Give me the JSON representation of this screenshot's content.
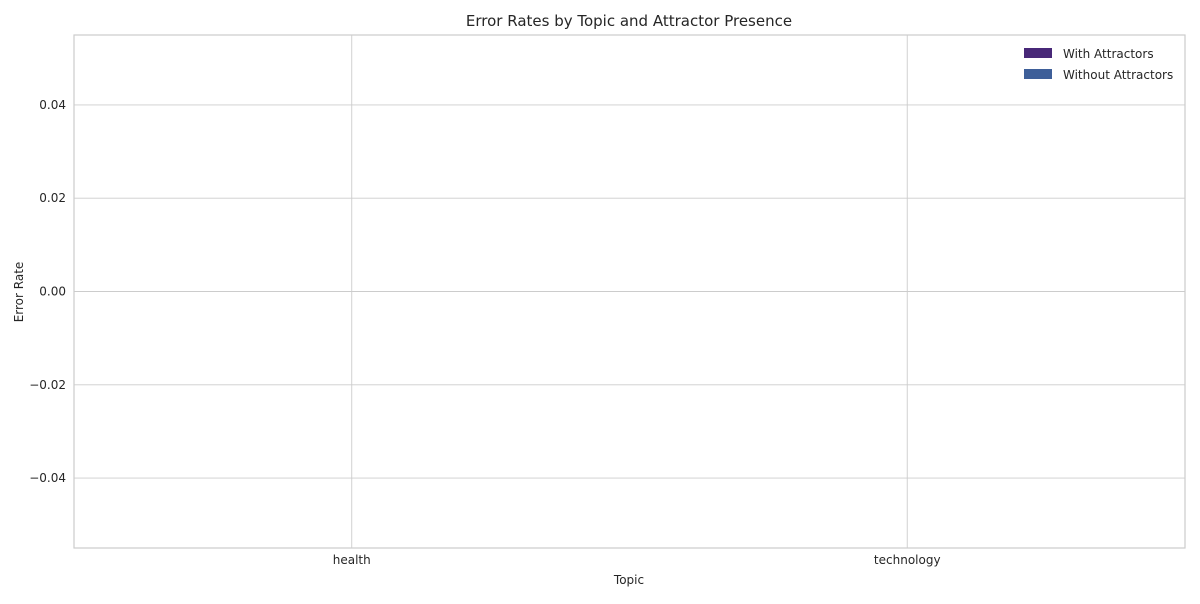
{
  "chart_data": {
    "type": "bar",
    "title": "Error Rates by Topic and Attractor Presence",
    "xlabel": "Topic",
    "ylabel": "Error Rate",
    "categories": [
      "health",
      "technology"
    ],
    "series": [
      {
        "name": "With Attractors",
        "values": [
          0,
          0
        ],
        "color": "#482878"
      },
      {
        "name": "Without Attractors",
        "values": [
          0,
          0
        ],
        "color": "#3e5f99"
      }
    ],
    "ylim": [
      -0.055,
      0.055
    ],
    "yticks": [
      -0.04,
      -0.02,
      0.0,
      0.02,
      0.04
    ],
    "ytick_labels": [
      "−0.04",
      "−0.02",
      "0.00",
      "0.02",
      "0.04"
    ],
    "grid": true,
    "legend_position": "top-right"
  }
}
